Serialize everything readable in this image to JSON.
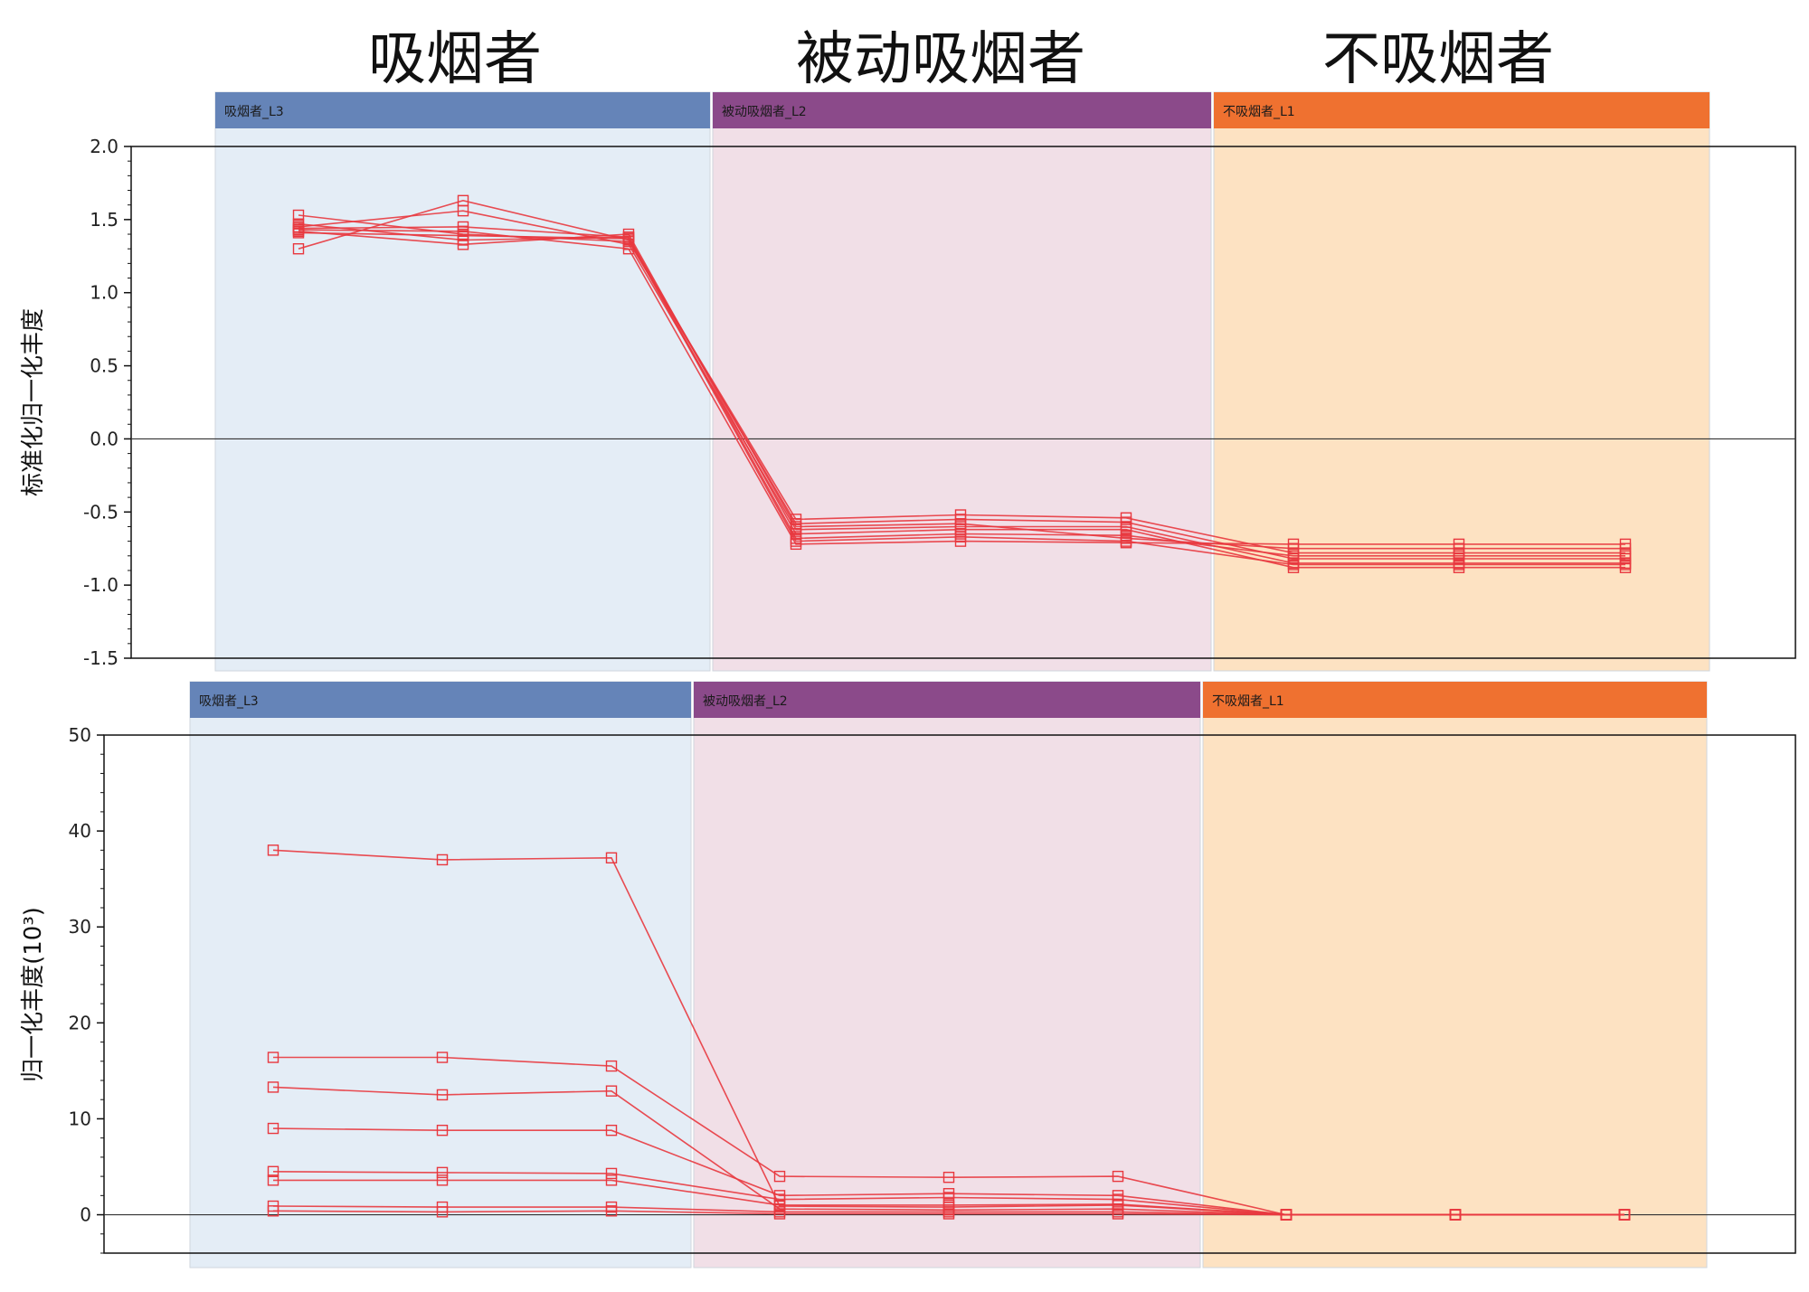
{
  "group_titles": [
    "吸烟者",
    "被动吸烟者",
    "不吸烟者"
  ],
  "colors": {
    "header": [
      "#6584b8",
      "#8b4a8a",
      "#ef7130"
    ],
    "band": [
      "#e4edf6",
      "#f1dfe7",
      "#fde2c2"
    ],
    "line": "#e8383f",
    "axis": "#111111"
  },
  "chart_data": [
    {
      "type": "line",
      "ylabel": "标准化归一化丰度",
      "ylim": [
        -1.5,
        2.0
      ],
      "yticks": [
        "2.0",
        "1.5",
        "1.0",
        "0.5",
        "0.0",
        "-0.5",
        "-1.0",
        "-1.5"
      ],
      "groups": [
        "吸烟者_L3",
        "被动吸烟者_L2",
        "不吸烟者_L1"
      ],
      "x_points": 9,
      "series": [
        {
          "values": [
            1.53,
            1.4,
            1.35,
            -0.55,
            -0.52,
            -0.54,
            -0.78,
            -0.78,
            -0.78
          ]
        },
        {
          "values": [
            1.3,
            1.63,
            1.36,
            -0.58,
            -0.55,
            -0.57,
            -0.82,
            -0.82,
            -0.82
          ]
        },
        {
          "values": [
            1.45,
            1.56,
            1.33,
            -0.62,
            -0.6,
            -0.6,
            -0.85,
            -0.85,
            -0.85
          ]
        },
        {
          "values": [
            1.42,
            1.33,
            1.4,
            -0.65,
            -0.62,
            -0.62,
            -0.88,
            -0.88,
            -0.88
          ]
        },
        {
          "values": [
            1.47,
            1.36,
            1.38,
            -0.68,
            -0.65,
            -0.66,
            -0.8,
            -0.8,
            -0.8
          ]
        },
        {
          "values": [
            1.43,
            1.42,
            1.3,
            -0.72,
            -0.7,
            -0.71,
            -0.72,
            -0.72,
            -0.72
          ]
        },
        {
          "values": [
            1.44,
            1.45,
            1.38,
            -0.6,
            -0.58,
            -0.68,
            -0.75,
            -0.75,
            -0.75
          ]
        },
        {
          "values": [
            1.41,
            1.39,
            1.37,
            -0.7,
            -0.67,
            -0.7,
            -0.86,
            -0.86,
            -0.86
          ]
        }
      ]
    },
    {
      "type": "line",
      "ylabel": "归一化丰度(10³)",
      "ylim": [
        -4,
        50
      ],
      "yticks": [
        "50",
        "40",
        "30",
        "20",
        "10",
        "0"
      ],
      "groups": [
        "吸烟者_L3",
        "被动吸烟者_L2",
        "不吸烟者_L1"
      ],
      "x_points": 9,
      "series": [
        {
          "values": [
            38.0,
            37.0,
            37.2,
            0.9,
            0.8,
            1.0,
            0,
            0,
            0
          ]
        },
        {
          "values": [
            16.4,
            16.4,
            15.5,
            4.0,
            3.9,
            4.0,
            0,
            0,
            0
          ]
        },
        {
          "values": [
            13.3,
            12.5,
            12.9,
            0.6,
            0.5,
            0.6,
            0,
            0,
            0
          ]
        },
        {
          "values": [
            9.0,
            8.8,
            8.8,
            2.0,
            2.2,
            2.0,
            0,
            0,
            0
          ]
        },
        {
          "values": [
            4.5,
            4.4,
            4.3,
            1.6,
            1.8,
            1.6,
            0,
            0,
            0
          ]
        },
        {
          "values": [
            3.6,
            3.6,
            3.6,
            1.0,
            1.0,
            1.1,
            0,
            0,
            0
          ]
        },
        {
          "values": [
            0.9,
            0.8,
            0.8,
            0.3,
            0.3,
            0.3,
            0,
            0,
            0
          ]
        },
        {
          "values": [
            0.4,
            0.3,
            0.4,
            0.1,
            0.1,
            0.1,
            0,
            0,
            0
          ]
        }
      ]
    }
  ]
}
